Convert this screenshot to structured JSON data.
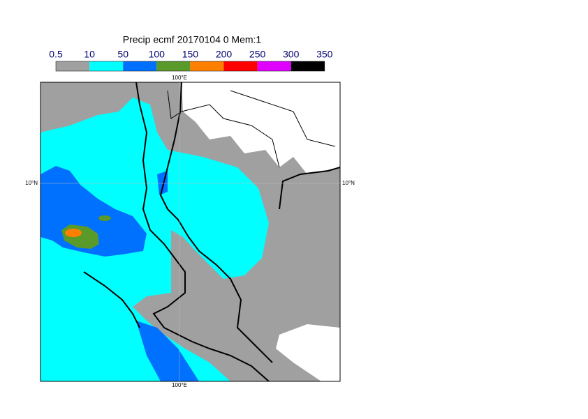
{
  "header": {
    "title": "Precip ecmf 20170104 0 Mem:1"
  },
  "colorbar": {
    "labels": [
      "0.5",
      "10",
      "50",
      "100",
      "150",
      "200",
      "250",
      "300",
      "350"
    ],
    "colors": [
      "#a0a0a0",
      "#00ffff",
      "#0070ff",
      "#5a9a2a",
      "#ff8000",
      "#ff0000",
      "#e000ff",
      "#000000"
    ]
  },
  "axes": {
    "top": "100°E",
    "bottom": "100°E",
    "left": "10°N",
    "right": "10°N"
  }
}
